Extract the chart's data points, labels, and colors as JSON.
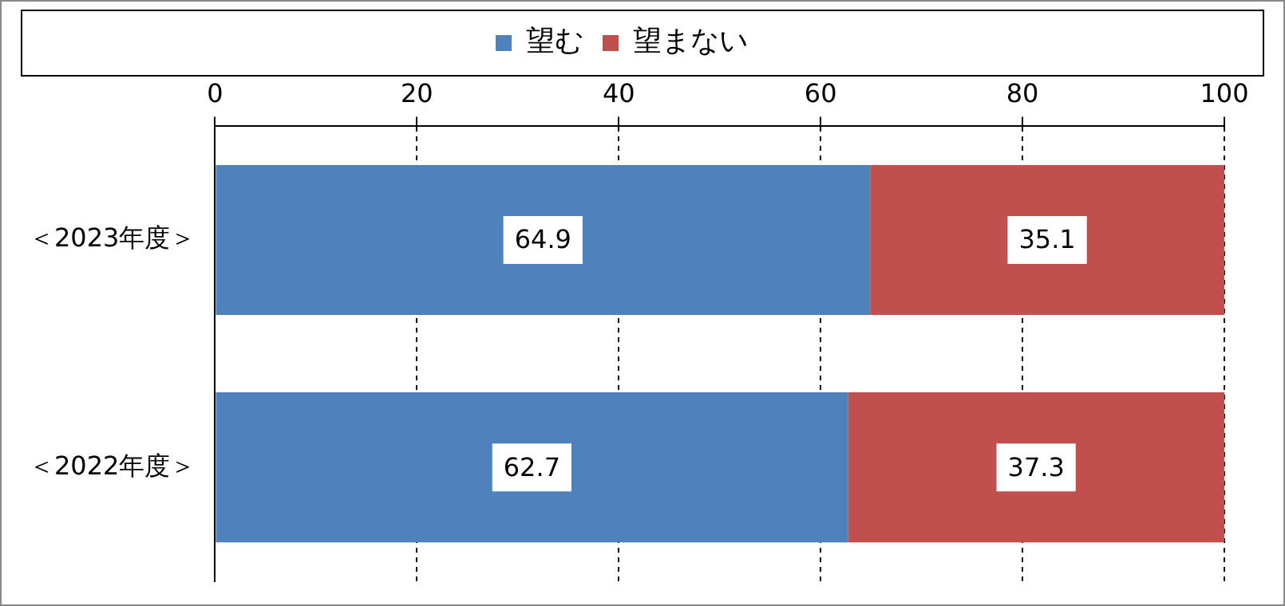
{
  "chart_data": {
    "type": "bar",
    "orientation": "horizontal",
    "stacked": true,
    "categories": [
      "＜2023年度＞",
      "＜2022年度＞"
    ],
    "series": [
      {
        "name": "望む",
        "color": "#4f81bd",
        "values": [
          64.9,
          62.7
        ]
      },
      {
        "name": "望まない",
        "color": "#c0504d",
        "values": [
          35.1,
          37.3
        ]
      }
    ],
    "xlim": [
      0,
      100
    ],
    "xticks": [
      0,
      20,
      40,
      60,
      80,
      100
    ],
    "grid": "x",
    "legend": "top",
    "data_labels": true
  }
}
